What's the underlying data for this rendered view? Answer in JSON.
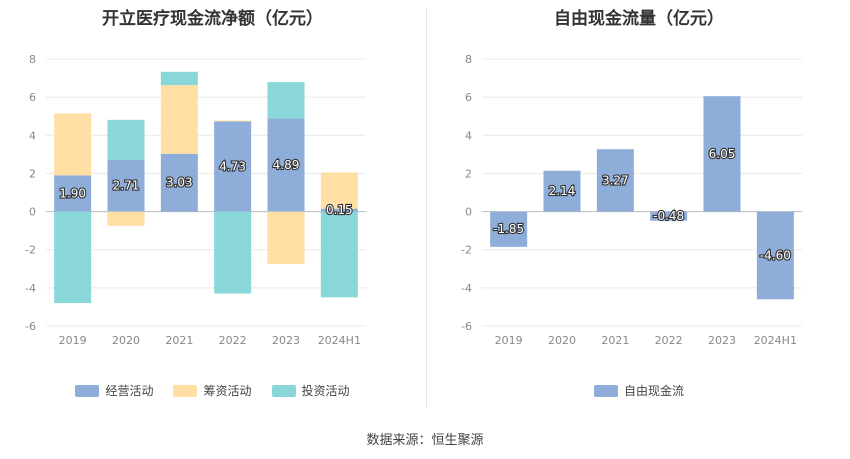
{
  "source": "数据来源：恒生聚源",
  "chart_data": [
    {
      "type": "bar",
      "stacked": true,
      "title": "开立医疗现金流净额（亿元）",
      "categories": [
        "2019",
        "2020",
        "2021",
        "2022",
        "2023",
        "2024H1"
      ],
      "series": [
        {
          "name": "经营活动",
          "color": "#8eadd9",
          "values": [
            1.9,
            2.71,
            3.03,
            4.73,
            4.89,
            0.15
          ]
        },
        {
          "name": "筹资活动",
          "color": "#ffdfa3",
          "values": [
            3.25,
            -0.75,
            3.6,
            0.05,
            -2.75,
            1.9
          ]
        },
        {
          "name": "投资活动",
          "color": "#8ad7da",
          "values": [
            -4.8,
            2.1,
            0.7,
            -4.3,
            1.9,
            -4.5
          ]
        }
      ],
      "data_labels": [
        "1.90",
        "2.71",
        "3.03",
        "4.73",
        "4.89",
        "0.15"
      ],
      "yticks": [
        "-6",
        "-4",
        "-2",
        "0",
        "2",
        "4",
        "6",
        "8"
      ],
      "ylim": [
        -6,
        8
      ],
      "grid": true,
      "legend": "bottom-center"
    },
    {
      "type": "bar",
      "title": "自由现金流量（亿元）",
      "categories": [
        "2019",
        "2020",
        "2021",
        "2022",
        "2023",
        "2024H1"
      ],
      "series": [
        {
          "name": "自由现金流",
          "color": "#8eadd9",
          "values": [
            -1.85,
            2.14,
            3.27,
            -0.48,
            6.05,
            -4.6
          ]
        }
      ],
      "data_labels": [
        "-1.85",
        "2.14",
        "3.27",
        "-0.48",
        "6.05",
        "-4.60"
      ],
      "yticks": [
        "-6",
        "-4",
        "-2",
        "0",
        "2",
        "4",
        "6",
        "8"
      ],
      "ylim": [
        -6,
        8
      ],
      "grid": true,
      "legend": "bottom-center"
    }
  ]
}
